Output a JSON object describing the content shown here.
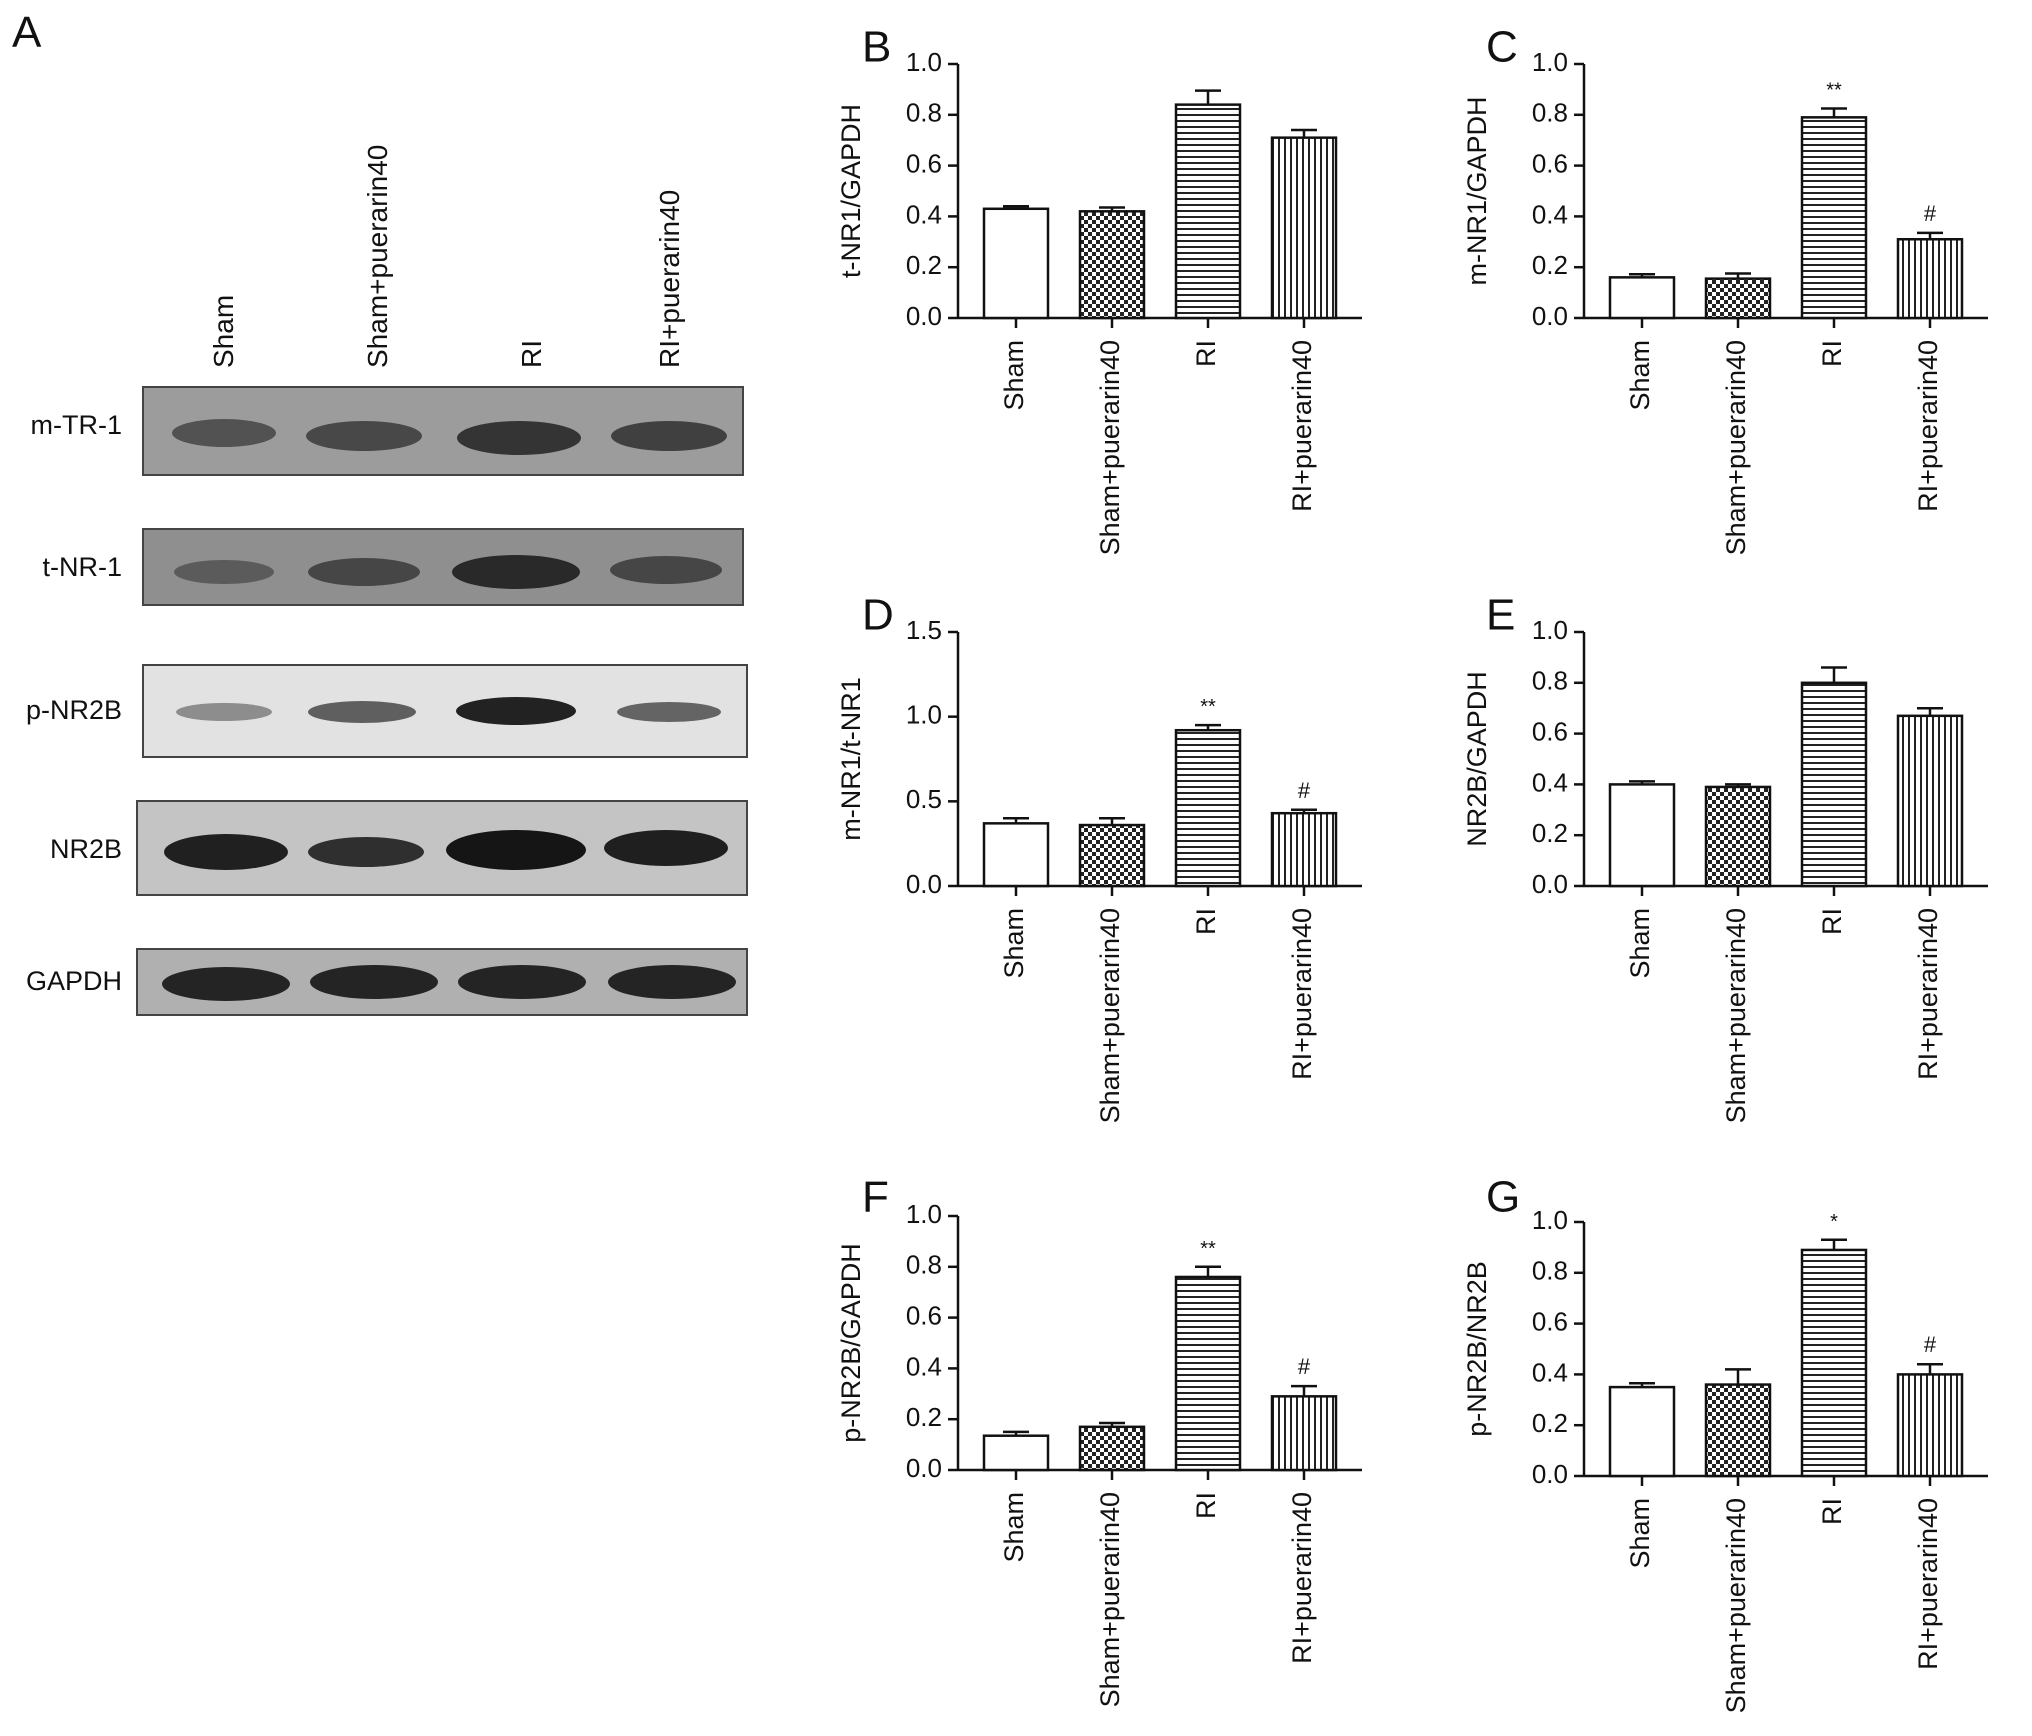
{
  "panel_a": {
    "letter": "A",
    "lanes": [
      "Sham",
      "Sham+puerarin40",
      "RI",
      "RI+puerarin40"
    ],
    "rows": [
      "m-TR-1",
      "t-NR-1",
      "p-NR2B",
      "NR2B",
      "GAPDH"
    ]
  },
  "chart_data": [
    {
      "letter": "B",
      "type": "bar",
      "categories": [
        "Sham",
        "Sham+puerarin40",
        "RI",
        "RI+puerarin40"
      ],
      "values": [
        0.43,
        0.42,
        0.84,
        0.71
      ],
      "errors": [
        0.01,
        0.015,
        0.055,
        0.03
      ],
      "annotations": [
        "",
        "",
        "",
        ""
      ],
      "ylabel": "t-NR1/GAPDH",
      "ylim": [
        0,
        1.0
      ],
      "yticks": [
        "0.0",
        "0.2",
        "0.4",
        "0.6",
        "0.8",
        "1.0"
      ]
    },
    {
      "letter": "C",
      "type": "bar",
      "categories": [
        "Sham",
        "Sham+puerarin40",
        "RI",
        "RI+puerarin40"
      ],
      "values": [
        0.16,
        0.155,
        0.79,
        0.31
      ],
      "errors": [
        0.012,
        0.02,
        0.035,
        0.025
      ],
      "annotations": [
        "",
        "",
        "**",
        "#"
      ],
      "ylabel": "m-NR1/GAPDH",
      "ylim": [
        0,
        1.0
      ],
      "yticks": [
        "0.0",
        "0.2",
        "0.4",
        "0.6",
        "0.8",
        "1.0"
      ]
    },
    {
      "letter": "D",
      "type": "bar",
      "categories": [
        "Sham",
        "Sham+puerarin40",
        "RI",
        "RI+puerarin40"
      ],
      "values": [
        0.37,
        0.36,
        0.92,
        0.43
      ],
      "errors": [
        0.03,
        0.04,
        0.03,
        0.02
      ],
      "annotations": [
        "",
        "",
        "**",
        "#"
      ],
      "ylabel": "m-NR1/t-NR1",
      "ylim": [
        0,
        1.5
      ],
      "yticks": [
        "0.0",
        "0.5",
        "1.0",
        "1.5"
      ]
    },
    {
      "letter": "E",
      "type": "bar",
      "categories": [
        "Sham",
        "Sham+puerarin40",
        "RI",
        "RI+puerarin40"
      ],
      "values": [
        0.4,
        0.39,
        0.8,
        0.67
      ],
      "errors": [
        0.012,
        0.01,
        0.06,
        0.03
      ],
      "annotations": [
        "",
        "",
        "",
        ""
      ],
      "ylabel": "NR2B/GAPDH",
      "ylim": [
        0,
        1.0
      ],
      "yticks": [
        "0.0",
        "0.2",
        "0.4",
        "0.6",
        "0.8",
        "1.0"
      ]
    },
    {
      "letter": "F",
      "type": "bar",
      "categories": [
        "Sham",
        "Sham+puerarin40",
        "RI",
        "RI+puerarin40"
      ],
      "values": [
        0.135,
        0.17,
        0.76,
        0.29
      ],
      "errors": [
        0.015,
        0.015,
        0.04,
        0.04
      ],
      "annotations": [
        "",
        "",
        "**",
        "#"
      ],
      "ylabel": "p-NR2B/GAPDH",
      "ylim": [
        0,
        1.0
      ],
      "yticks": [
        "0.0",
        "0.2",
        "0.4",
        "0.6",
        "0.8",
        "1.0"
      ]
    },
    {
      "letter": "G",
      "type": "bar",
      "categories": [
        "Sham",
        "Sham+puerarin40",
        "RI",
        "RI+puerarin40"
      ],
      "values": [
        0.35,
        0.36,
        0.89,
        0.4
      ],
      "errors": [
        0.015,
        0.06,
        0.04,
        0.04
      ],
      "annotations": [
        "",
        "",
        "*",
        "#"
      ],
      "ylabel": "p-NR2B/NR2B",
      "ylim": [
        0,
        1.0
      ],
      "yticks": [
        "0.0",
        "0.2",
        "0.4",
        "0.6",
        "0.8",
        "1.0"
      ]
    }
  ],
  "style": {
    "bar_patterns": [
      "white",
      "checker",
      "horizontal-stripes",
      "vertical-stripes"
    ],
    "ink_color": "#111111"
  }
}
